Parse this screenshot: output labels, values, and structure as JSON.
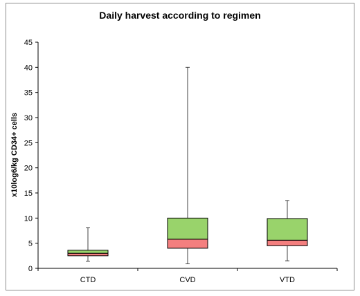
{
  "chart_data": {
    "type": "box",
    "title": "Daily harvest according to regimen",
    "xlabel": "",
    "ylabel": "x10log6/kg CD34+ cells",
    "ylim": [
      0,
      45
    ],
    "yticks": [
      0,
      5,
      10,
      15,
      20,
      25,
      30,
      35,
      40,
      45
    ],
    "grid": false,
    "categories": [
      "CTD",
      "CVD",
      "VTD"
    ],
    "boxes": [
      {
        "category": "CTD",
        "min": 1.4,
        "q1": 2.5,
        "median": 3.0,
        "q3": 3.6,
        "max": 8.1
      },
      {
        "category": "CVD",
        "min": 0.9,
        "q1": 4.0,
        "median": 5.8,
        "q3": 10.0,
        "max": 40.0
      },
      {
        "category": "VTD",
        "min": 1.5,
        "q1": 4.5,
        "median": 5.6,
        "q3": 9.9,
        "max": 13.5
      }
    ],
    "colors": {
      "lower_box": "#f47f7f",
      "upper_box": "#99d36b",
      "axis": "#000000",
      "frame": "#8c8c8c"
    }
  }
}
